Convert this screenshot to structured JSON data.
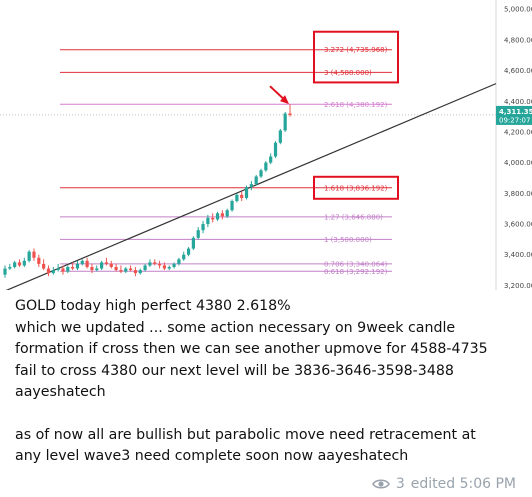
{
  "chart_data": {
    "type": "candlestick",
    "title": "",
    "ylim": [
      3170,
      5060
    ],
    "y_ticks": [
      "5,000.000",
      "4,800.000",
      "4,600.000",
      "4,400.000",
      "4,200.000",
      "4,000.000",
      "3,800.000",
      "3,600.000",
      "3,400.000",
      "3,200.000"
    ],
    "y_tick_values": [
      5000,
      4800,
      4600,
      4400,
      4200,
      4000,
      3800,
      3600,
      3400,
      3200
    ],
    "price_badge": {
      "value": "4,311.35",
      "countdown": "09:27:07",
      "price": 4311,
      "color": "#26a69a"
    },
    "fib_levels": [
      {
        "label": "3.272 (4,735.968)",
        "value": 4735.968,
        "color": "#e0303a",
        "boxed": true
      },
      {
        "label": "3 (4,588.000)",
        "value": 4588,
        "color": "#e0303a",
        "boxed": true
      },
      {
        "label": "2.618 (4,380.192)",
        "value": 4380.192,
        "color": "#d47fcf",
        "boxed": false
      },
      {
        "label": "1.618 (3,836.192)",
        "value": 3836.192,
        "color": "#e0303a",
        "boxed": true
      },
      {
        "label": "1.27 (3,646.880)",
        "value": 3646.88,
        "color": "#c27fc8",
        "boxed": false
      },
      {
        "label": "1 (3,500.000)",
        "value": 3500,
        "color": "#c27fc8",
        "boxed": false
      },
      {
        "label": "0.706 (3,340.064)",
        "value": 3340.064,
        "color": "#c27fc8",
        "boxed": false
      },
      {
        "label": "0.618 (3,292.192)",
        "value": 3292.192,
        "color": "#c27fc8",
        "boxed": false
      }
    ],
    "trendline": {
      "start_value": 3150,
      "end_value": 4515,
      "color": "#333333"
    },
    "candles": [
      [
        3270,
        3330,
        3250,
        3310
      ],
      [
        3310,
        3340,
        3300,
        3320
      ],
      [
        3320,
        3360,
        3310,
        3350
      ],
      [
        3350,
        3370,
        3320,
        3330
      ],
      [
        3330,
        3380,
        3320,
        3360
      ],
      [
        3360,
        3430,
        3350,
        3420
      ],
      [
        3420,
        3440,
        3360,
        3380
      ],
      [
        3380,
        3400,
        3320,
        3340
      ],
      [
        3340,
        3370,
        3300,
        3310
      ],
      [
        3310,
        3330,
        3260,
        3280
      ],
      [
        3280,
        3320,
        3270,
        3300
      ],
      [
        3300,
        3340,
        3290,
        3310
      ],
      [
        3310,
        3330,
        3270,
        3290
      ],
      [
        3290,
        3330,
        3280,
        3320
      ],
      [
        3320,
        3350,
        3300,
        3310
      ],
      [
        3310,
        3360,
        3300,
        3340
      ],
      [
        3340,
        3370,
        3330,
        3360
      ],
      [
        3360,
        3380,
        3310,
        3320
      ],
      [
        3320,
        3340,
        3280,
        3300
      ],
      [
        3300,
        3330,
        3290,
        3310
      ],
      [
        3310,
        3360,
        3300,
        3350
      ],
      [
        3350,
        3380,
        3330,
        3340
      ],
      [
        3340,
        3360,
        3310,
        3320
      ],
      [
        3320,
        3340,
        3290,
        3300
      ],
      [
        3300,
        3330,
        3280,
        3290
      ],
      [
        3290,
        3320,
        3280,
        3310
      ],
      [
        3310,
        3330,
        3290,
        3300
      ],
      [
        3300,
        3320,
        3260,
        3280
      ],
      [
        3280,
        3310,
        3270,
        3300
      ],
      [
        3300,
        3340,
        3290,
        3330
      ],
      [
        3330,
        3370,
        3320,
        3350
      ],
      [
        3350,
        3370,
        3330,
        3340
      ],
      [
        3340,
        3360,
        3310,
        3330
      ],
      [
        3330,
        3350,
        3300,
        3310
      ],
      [
        3310,
        3330,
        3300,
        3320
      ],
      [
        3320,
        3350,
        3310,
        3340
      ],
      [
        3340,
        3380,
        3330,
        3370
      ],
      [
        3370,
        3420,
        3360,
        3400
      ],
      [
        3400,
        3450,
        3390,
        3440
      ],
      [
        3440,
        3520,
        3430,
        3510
      ],
      [
        3510,
        3580,
        3500,
        3560
      ],
      [
        3560,
        3620,
        3540,
        3600
      ],
      [
        3600,
        3660,
        3580,
        3640
      ],
      [
        3640,
        3670,
        3610,
        3630
      ],
      [
        3630,
        3680,
        3620,
        3670
      ],
      [
        3670,
        3690,
        3630,
        3650
      ],
      [
        3650,
        3700,
        3640,
        3690
      ],
      [
        3690,
        3760,
        3680,
        3750
      ],
      [
        3750,
        3800,
        3740,
        3790
      ],
      [
        3790,
        3810,
        3750,
        3770
      ],
      [
        3770,
        3850,
        3760,
        3840
      ],
      [
        3840,
        3880,
        3820,
        3860
      ],
      [
        3860,
        3920,
        3850,
        3910
      ],
      [
        3910,
        3960,
        3900,
        3950
      ],
      [
        3950,
        4010,
        3940,
        4000
      ],
      [
        4000,
        4060,
        3990,
        4040
      ],
      [
        4040,
        4140,
        4030,
        4130
      ],
      [
        4130,
        4220,
        4120,
        4210
      ],
      [
        4210,
        4330,
        4200,
        4320
      ],
      [
        4320,
        4381,
        4300,
        4311
      ]
    ]
  },
  "message": {
    "para1_lines": [
      "GOLD today high perfect  4380 2.618%",
      "which we updated ... some action necessary on 9week candle",
      "formation if cross then we can see another upmove for 4588-4735",
      "fail to cross 4380 our next level will be 3836-3646-3598-3488",
      "aayeshatech"
    ],
    "para2_lines": [
      "as of now all are bullish but parabolic move need retracement at",
      "any level wave3 need complete soon now aayeshatech"
    ]
  },
  "meta": {
    "views": "3",
    "edited": "edited 5:06 PM",
    "icon": "eye-icon",
    "icon_color": "#9aa3ad"
  }
}
